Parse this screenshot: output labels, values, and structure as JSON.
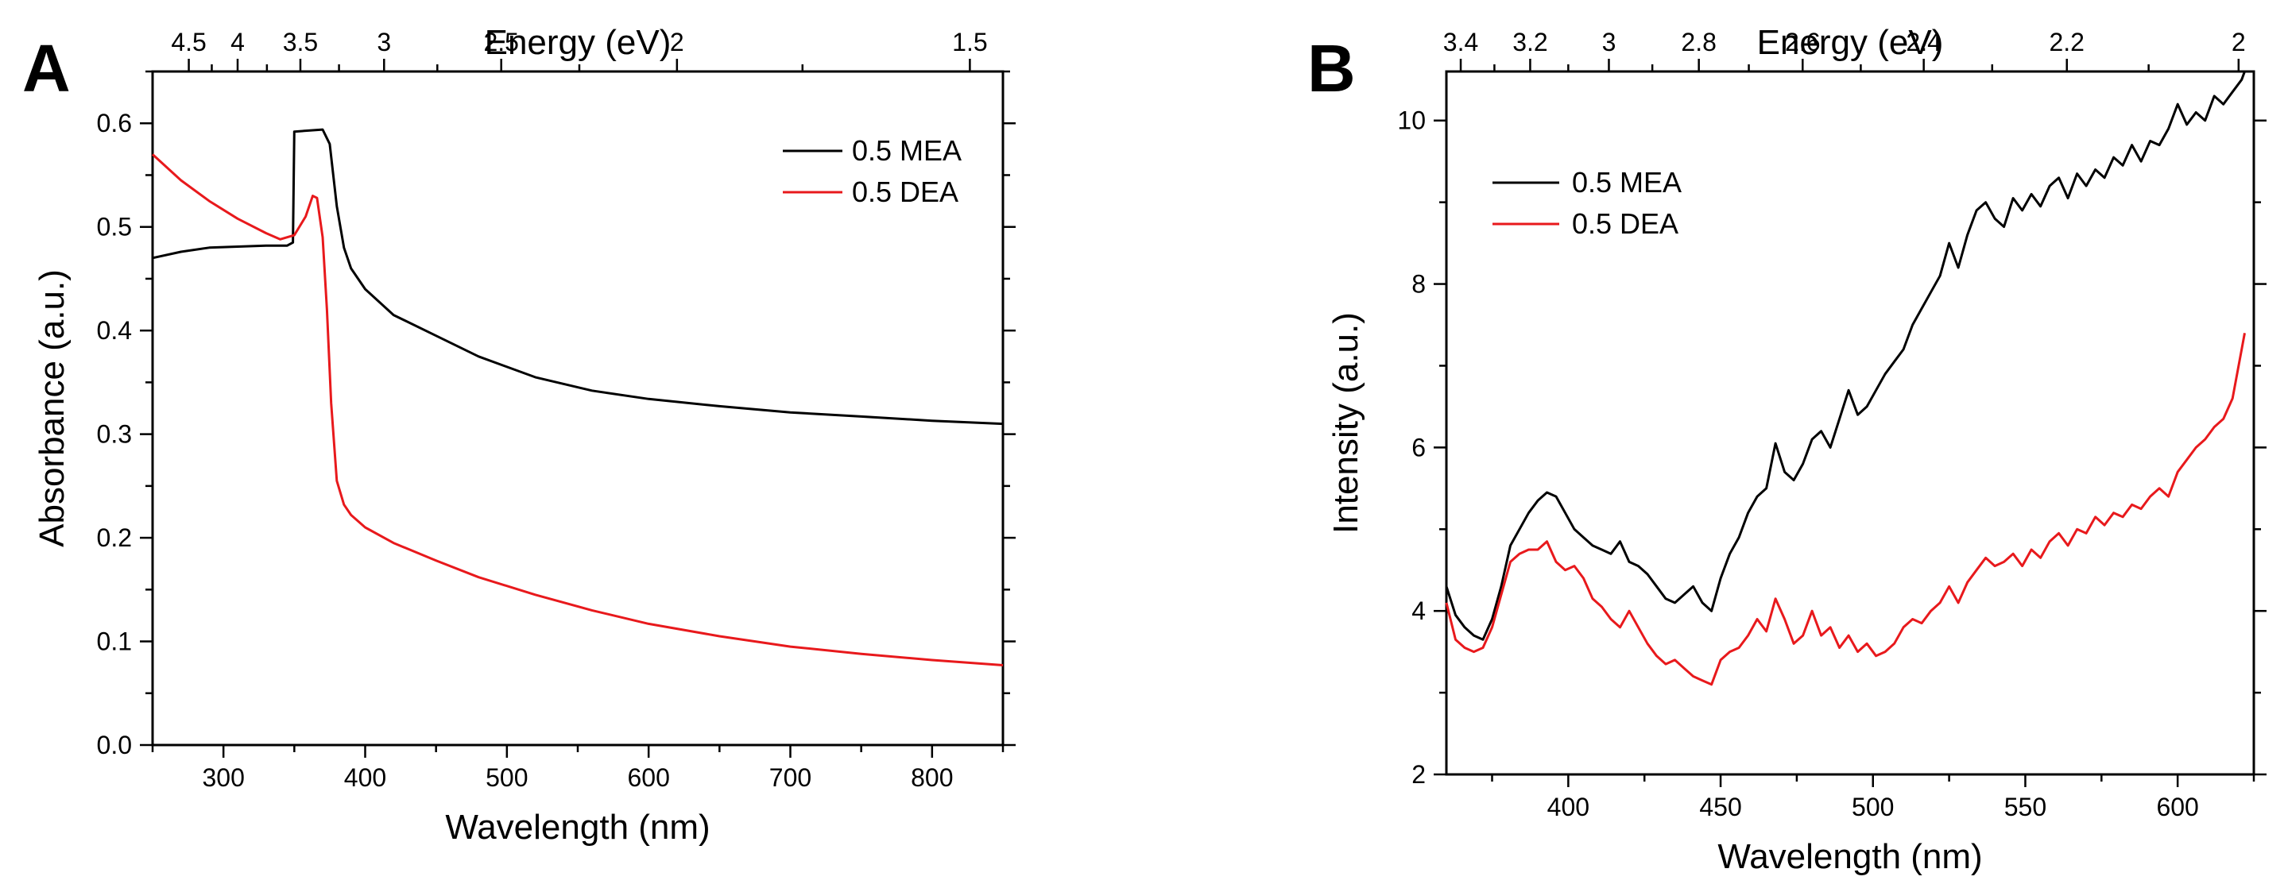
{
  "chart_data": [
    {
      "panel": "A",
      "type": "line",
      "xlabel": "Wavelength (nm)",
      "ylabel": "Absorbance (a.u.)",
      "top_xlabel": "Energy (eV)",
      "xlim": [
        250,
        850
      ],
      "ylim": [
        0.0,
        0.65
      ],
      "xticks": [
        300,
        400,
        500,
        600,
        700,
        800
      ],
      "xtick_labels": [
        "300",
        "400",
        "500",
        "600",
        "700",
        "800"
      ],
      "yticks": [
        0.0,
        0.1,
        0.2,
        0.3,
        0.4,
        0.5,
        0.6
      ],
      "ytick_labels": [
        "0.0",
        "0.1",
        "0.2",
        "0.3",
        "0.4",
        "0.5",
        "0.6"
      ],
      "top_ticks_ev": [
        4.5,
        4,
        3.5,
        3,
        2.5,
        2,
        1.5
      ],
      "top_tick_labels": [
        "4.5",
        "4",
        "3.5",
        "3",
        "2.5",
        "2",
        "1.5"
      ],
      "legend_position": "top-right",
      "series": [
        {
          "name": "0.5 MEA",
          "color": "#000000",
          "x": [
            250,
            270,
            290,
            310,
            330,
            345,
            349,
            350,
            360,
            370,
            375,
            380,
            385,
            390,
            400,
            420,
            450,
            480,
            520,
            560,
            600,
            650,
            700,
            750,
            800,
            850
          ],
          "y": [
            0.47,
            0.476,
            0.48,
            0.481,
            0.482,
            0.482,
            0.485,
            0.592,
            0.593,
            0.594,
            0.58,
            0.52,
            0.48,
            0.46,
            0.44,
            0.415,
            0.395,
            0.375,
            0.355,
            0.342,
            0.334,
            0.327,
            0.321,
            0.317,
            0.313,
            0.31
          ]
        },
        {
          "name": "0.5 DEA",
          "color": "#e8191c",
          "x": [
            250,
            270,
            290,
            310,
            330,
            340,
            350,
            358,
            363,
            366,
            370,
            373,
            376,
            380,
            385,
            390,
            400,
            420,
            450,
            480,
            520,
            560,
            600,
            650,
            700,
            750,
            800,
            850
          ],
          "y": [
            0.57,
            0.545,
            0.525,
            0.508,
            0.494,
            0.488,
            0.492,
            0.51,
            0.53,
            0.528,
            0.49,
            0.42,
            0.33,
            0.255,
            0.232,
            0.222,
            0.21,
            0.195,
            0.178,
            0.162,
            0.145,
            0.13,
            0.117,
            0.105,
            0.095,
            0.088,
            0.082,
            0.077
          ]
        }
      ]
    },
    {
      "panel": "B",
      "type": "line",
      "xlabel": "Wavelength (nm)",
      "ylabel": "Intensity (a.u.)",
      "top_xlabel": "Energy (eV)",
      "xlim": [
        360,
        625
      ],
      "ylim": [
        2,
        10.6
      ],
      "xticks": [
        400,
        450,
        500,
        550,
        600
      ],
      "xtick_labels": [
        "400",
        "450",
        "500",
        "550",
        "600"
      ],
      "yticks": [
        2,
        4,
        6,
        8,
        10
      ],
      "ytick_labels": [
        "2",
        "4",
        "6",
        "8",
        "10"
      ],
      "top_ticks_ev": [
        3.4,
        3.2,
        3,
        2.8,
        2.6,
        2.4,
        2.2,
        2
      ],
      "top_tick_labels": [
        "3.4",
        "3.2",
        "3",
        "2.8",
        "2.6",
        "2.4",
        "2.2",
        "2"
      ],
      "legend_position": "top-left",
      "series": [
        {
          "name": "0.5 MEA",
          "color": "#000000",
          "x": [
            360,
            363,
            366,
            369,
            372,
            375,
            378,
            381,
            384,
            387,
            390,
            393,
            396,
            399,
            402,
            405,
            408,
            411,
            414,
            417,
            420,
            423,
            426,
            429,
            432,
            435,
            438,
            441,
            444,
            447,
            450,
            453,
            456,
            459,
            462,
            465,
            468,
            471,
            474,
            477,
            480,
            483,
            486,
            489,
            492,
            495,
            498,
            501,
            504,
            507,
            510,
            513,
            516,
            519,
            522,
            525,
            528,
            531,
            534,
            537,
            540,
            543,
            546,
            549,
            552,
            555,
            558,
            561,
            564,
            567,
            570,
            573,
            576,
            579,
            582,
            585,
            588,
            591,
            594,
            597,
            600,
            603,
            606,
            609,
            612,
            615,
            618,
            621,
            622
          ],
          "y": [
            4.3,
            3.95,
            3.8,
            3.7,
            3.65,
            3.9,
            4.3,
            4.8,
            5.0,
            5.2,
            5.35,
            5.45,
            5.4,
            5.2,
            5.0,
            4.9,
            4.8,
            4.75,
            4.7,
            4.85,
            4.6,
            4.55,
            4.45,
            4.3,
            4.15,
            4.1,
            4.2,
            4.3,
            4.1,
            4.0,
            4.4,
            4.7,
            4.9,
            5.2,
            5.4,
            5.5,
            6.05,
            5.7,
            5.6,
            5.8,
            6.1,
            6.2,
            6.0,
            6.35,
            6.7,
            6.4,
            6.5,
            6.7,
            6.9,
            7.05,
            7.2,
            7.5,
            7.7,
            7.9,
            8.1,
            8.5,
            8.2,
            8.6,
            8.9,
            9.0,
            8.8,
            8.7,
            9.05,
            8.9,
            9.1,
            8.95,
            9.2,
            9.3,
            9.05,
            9.35,
            9.2,
            9.4,
            9.3,
            9.55,
            9.45,
            9.7,
            9.5,
            9.75,
            9.7,
            9.9,
            10.2,
            9.95,
            10.1,
            10.0,
            10.3,
            10.2,
            10.35,
            10.5,
            10.6
          ]
        },
        {
          "name": "0.5 DEA",
          "color": "#e8191c",
          "x": [
            360,
            363,
            366,
            369,
            372,
            375,
            378,
            381,
            384,
            387,
            390,
            393,
            396,
            399,
            402,
            405,
            408,
            411,
            414,
            417,
            420,
            423,
            426,
            429,
            432,
            435,
            438,
            441,
            444,
            447,
            450,
            453,
            456,
            459,
            462,
            465,
            468,
            471,
            474,
            477,
            480,
            483,
            486,
            489,
            492,
            495,
            498,
            501,
            504,
            507,
            510,
            513,
            516,
            519,
            522,
            525,
            528,
            531,
            534,
            537,
            540,
            543,
            546,
            549,
            552,
            555,
            558,
            561,
            564,
            567,
            570,
            573,
            576,
            579,
            582,
            585,
            588,
            591,
            594,
            597,
            600,
            603,
            606,
            609,
            612,
            615,
            618,
            621,
            622
          ],
          "y": [
            4.1,
            3.65,
            3.55,
            3.5,
            3.55,
            3.8,
            4.2,
            4.6,
            4.7,
            4.75,
            4.75,
            4.85,
            4.6,
            4.5,
            4.55,
            4.4,
            4.15,
            4.05,
            3.9,
            3.8,
            4.0,
            3.8,
            3.6,
            3.45,
            3.35,
            3.4,
            3.3,
            3.2,
            3.15,
            3.1,
            3.4,
            3.5,
            3.55,
            3.7,
            3.9,
            3.75,
            4.15,
            3.9,
            3.6,
            3.7,
            4.0,
            3.7,
            3.8,
            3.55,
            3.7,
            3.5,
            3.6,
            3.45,
            3.5,
            3.6,
            3.8,
            3.9,
            3.85,
            4.0,
            4.1,
            4.3,
            4.1,
            4.35,
            4.5,
            4.65,
            4.55,
            4.6,
            4.7,
            4.55,
            4.75,
            4.65,
            4.85,
            4.95,
            4.8,
            5.0,
            4.95,
            5.15,
            5.05,
            5.2,
            5.15,
            5.3,
            5.25,
            5.4,
            5.5,
            5.4,
            5.7,
            5.85,
            6.0,
            6.1,
            6.25,
            6.35,
            6.6,
            7.2,
            7.4
          ]
        }
      ]
    }
  ]
}
